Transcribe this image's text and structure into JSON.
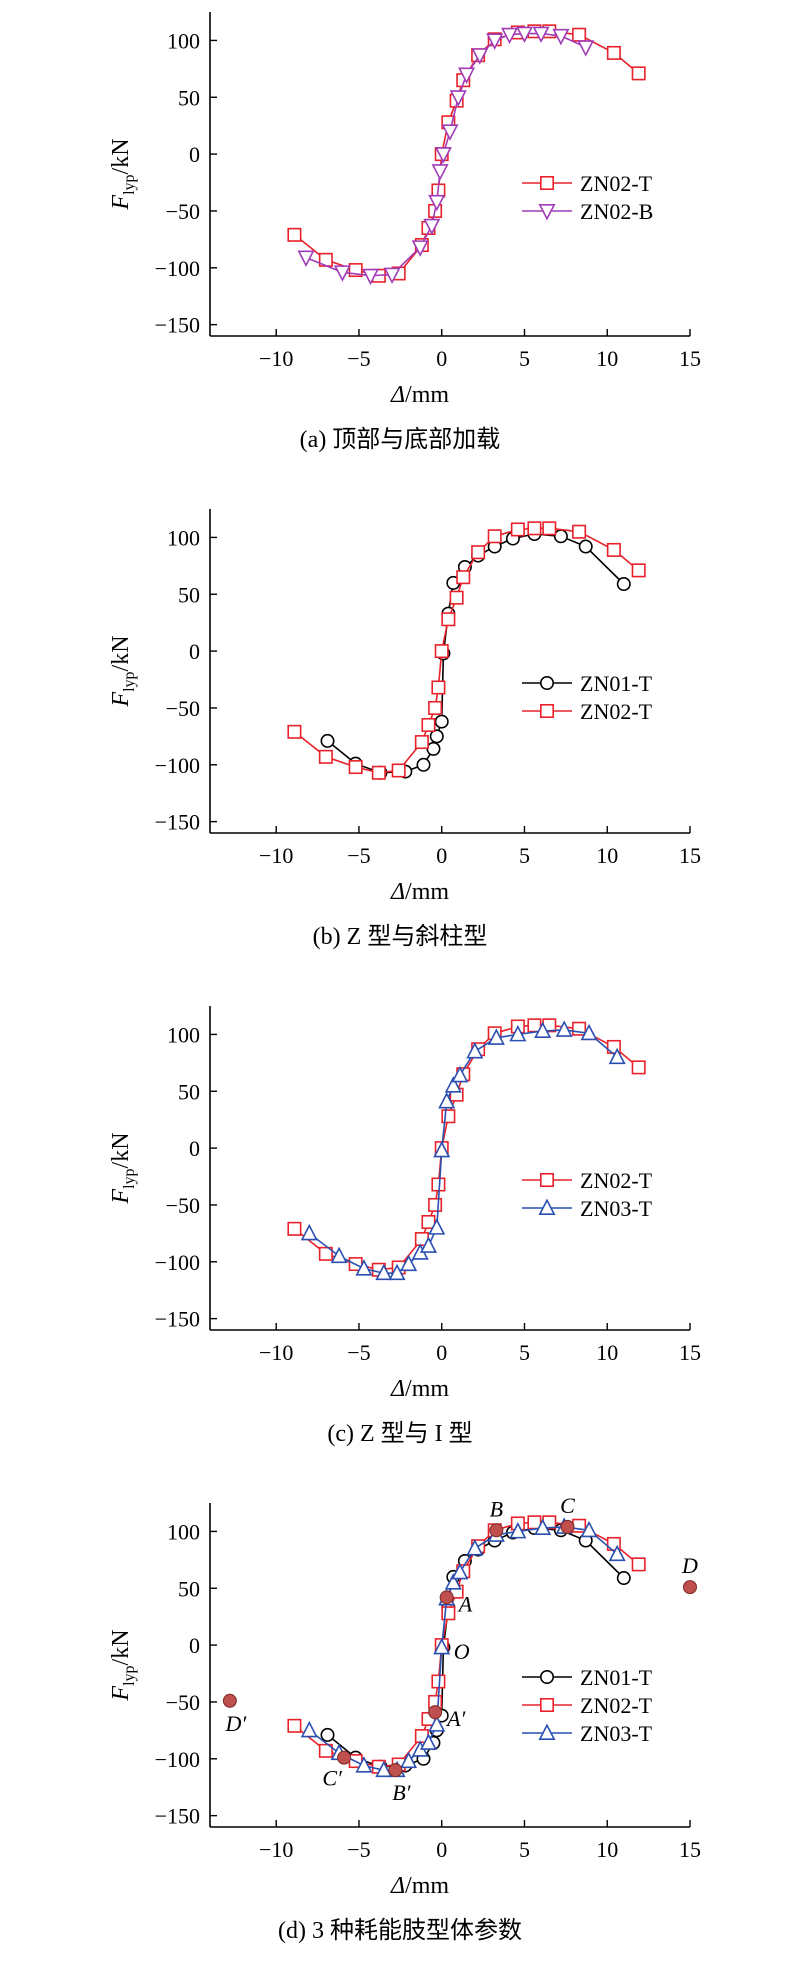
{
  "figure": {
    "colors": {
      "ZN01-T": "#000000",
      "ZN02-T": "#e8212a",
      "ZN02-B": "#a13bb8",
      "ZN03-T": "#2a4fb0",
      "point": "#c0504d"
    },
    "ylabel_main": "F",
    "ylabel_sub": "lyp",
    "ylabel_unit": "/kN",
    "xlabel_italic": "Δ",
    "xlabel_unit": "/mm"
  },
  "chart_data": [
    {
      "type": "line",
      "caption": "(a) 顶部与底部加载",
      "xlim": [
        -14,
        15
      ],
      "ylim": [
        -160,
        125
      ],
      "xticks": [
        "−10",
        "−5",
        "0",
        "5",
        "10",
        "15"
      ],
      "yticks": [
        "−150",
        "−100",
        "−50",
        "0",
        "50",
        "100"
      ],
      "legend": "lower-right",
      "series": [
        {
          "name": "ZN02-T",
          "marker": "square",
          "x": [
            -8.9,
            -7.0,
            -5.2,
            -3.8,
            -2.6,
            -1.2,
            -0.8,
            -0.4,
            -0.2,
            0.0,
            0.4,
            0.9,
            1.3,
            2.2,
            3.2,
            4.6,
            5.6,
            6.5,
            8.3,
            10.4,
            11.9
          ],
          "y": [
            -71,
            -93,
            -102,
            -107,
            -105,
            -80,
            -65,
            -50,
            -32,
            0,
            28,
            47,
            65,
            87,
            101,
            107,
            108,
            108,
            105,
            89,
            71
          ]
        },
        {
          "name": "ZN02-B",
          "marker": "triangle-down",
          "x": [
            -8.2,
            -6.0,
            -4.3,
            -3.0,
            -1.3,
            -0.6,
            -0.3,
            -0.1,
            0.1,
            0.5,
            1.0,
            1.5,
            2.3,
            3.2,
            4.1,
            5.0,
            6.0,
            7.2,
            8.7
          ],
          "y": [
            -91,
            -104,
            -107,
            -106,
            -82,
            -63,
            -42,
            -15,
            0,
            20,
            50,
            70,
            87,
            100,
            105,
            106,
            106,
            104,
            94
          ]
        }
      ]
    },
    {
      "type": "line",
      "caption": "(b) Z 型与斜柱型",
      "xlim": [
        -14,
        15
      ],
      "ylim": [
        -160,
        125
      ],
      "xticks": [
        "−10",
        "−5",
        "0",
        "5",
        "10",
        "15"
      ],
      "yticks": [
        "−150",
        "−100",
        "−50",
        "0",
        "50",
        "100"
      ],
      "legend": "lower-right",
      "series": [
        {
          "name": "ZN01-T",
          "marker": "circle",
          "x": [
            -6.9,
            -5.2,
            -3.7,
            -2.2,
            -1.1,
            -0.5,
            -0.3,
            0.0,
            0.1,
            0.4,
            0.7,
            1.4,
            2.2,
            3.2,
            4.3,
            5.6,
            7.2,
            8.7,
            11.0
          ],
          "y": [
            -79,
            -99,
            -107,
            -106,
            -100,
            -86,
            -75,
            -62,
            -2,
            33,
            60,
            74,
            84,
            92,
            99,
            103,
            101,
            92,
            59
          ]
        },
        {
          "name": "ZN02-T",
          "marker": "square",
          "x": [
            -8.9,
            -7.0,
            -5.2,
            -3.8,
            -2.6,
            -1.2,
            -0.8,
            -0.4,
            -0.2,
            0.0,
            0.4,
            0.9,
            1.3,
            2.2,
            3.2,
            4.6,
            5.6,
            6.5,
            8.3,
            10.4,
            11.9
          ],
          "y": [
            -71,
            -93,
            -102,
            -107,
            -105,
            -80,
            -65,
            -50,
            -32,
            0,
            28,
            47,
            65,
            87,
            101,
            107,
            108,
            108,
            105,
            89,
            71
          ]
        }
      ]
    },
    {
      "type": "line",
      "caption": "(c) Z 型与 I 型",
      "xlim": [
        -14,
        15
      ],
      "ylim": [
        -160,
        125
      ],
      "xticks": [
        "−10",
        "−5",
        "0",
        "5",
        "10",
        "15"
      ],
      "yticks": [
        "−150",
        "−100",
        "−50",
        "0",
        "50",
        "100"
      ],
      "legend": "lower-right",
      "series": [
        {
          "name": "ZN02-T",
          "marker": "square",
          "x": [
            -8.9,
            -7.0,
            -5.2,
            -3.8,
            -2.6,
            -1.2,
            -0.8,
            -0.4,
            -0.2,
            0.0,
            0.4,
            0.9,
            1.3,
            2.2,
            3.2,
            4.6,
            5.6,
            6.5,
            8.3,
            10.4,
            11.9
          ],
          "y": [
            -71,
            -93,
            -102,
            -107,
            -105,
            -80,
            -65,
            -50,
            -32,
            0,
            28,
            47,
            65,
            87,
            101,
            107,
            108,
            108,
            105,
            89,
            71
          ]
        },
        {
          "name": "ZN03-T",
          "marker": "triangle-up",
          "x": [
            -8.0,
            -6.2,
            -4.7,
            -3.5,
            -2.7,
            -2.0,
            -1.3,
            -0.8,
            -0.3,
            0.0,
            0.3,
            0.7,
            1.1,
            2.0,
            3.3,
            4.6,
            6.1,
            7.4,
            8.9,
            10.6
          ],
          "y": [
            -75,
            -95,
            -106,
            -110,
            -110,
            -102,
            -92,
            -86,
            -70,
            -2,
            41,
            55,
            64,
            85,
            97,
            100,
            103,
            104,
            101,
            80
          ]
        }
      ]
    },
    {
      "type": "line",
      "caption": "(d) 3 种耗能肢型体参数",
      "xlim": [
        -14,
        15
      ],
      "ylim": [
        -160,
        125
      ],
      "xticks": [
        "−10",
        "−5",
        "0",
        "5",
        "10",
        "15"
      ],
      "yticks": [
        "−150",
        "−100",
        "−50",
        "0",
        "50",
        "100"
      ],
      "legend": "lower-right",
      "series": [
        {
          "name": "ZN01-T",
          "marker": "circle",
          "x": [
            -6.9,
            -5.2,
            -3.7,
            -2.2,
            -1.1,
            -0.5,
            -0.3,
            0.0,
            0.1,
            0.4,
            0.7,
            1.4,
            2.2,
            3.2,
            4.3,
            5.6,
            7.2,
            8.7,
            11.0
          ],
          "y": [
            -79,
            -99,
            -107,
            -106,
            -100,
            -86,
            -75,
            -62,
            -2,
            33,
            60,
            74,
            84,
            92,
            99,
            103,
            101,
            92,
            59
          ]
        },
        {
          "name": "ZN02-T",
          "marker": "square",
          "x": [
            -8.9,
            -7.0,
            -5.2,
            -3.8,
            -2.6,
            -1.2,
            -0.8,
            -0.4,
            -0.2,
            0.0,
            0.4,
            0.9,
            1.3,
            2.2,
            3.2,
            4.6,
            5.6,
            6.5,
            8.3,
            10.4,
            11.9
          ],
          "y": [
            -71,
            -93,
            -102,
            -107,
            -105,
            -80,
            -65,
            -50,
            -32,
            0,
            28,
            47,
            65,
            87,
            101,
            107,
            108,
            108,
            105,
            89,
            71
          ]
        },
        {
          "name": "ZN03-T",
          "marker": "triangle-up",
          "x": [
            -8.0,
            -6.2,
            -4.7,
            -3.5,
            -2.7,
            -2.0,
            -1.3,
            -0.8,
            -0.3,
            0.0,
            0.3,
            0.7,
            1.1,
            2.0,
            3.3,
            4.6,
            6.1,
            7.4,
            8.9,
            10.6
          ],
          "y": [
            -75,
            -95,
            -106,
            -110,
            -110,
            -102,
            -92,
            -86,
            -70,
            -2,
            41,
            55,
            64,
            85,
            97,
            100,
            103,
            104,
            101,
            80
          ]
        }
      ],
      "points": [
        {
          "label": "O",
          "x": 0.0,
          "y": 0,
          "filled": false,
          "label_pos": "right"
        },
        {
          "label": "A",
          "x": 0.3,
          "y": 42,
          "filled": true,
          "label_pos": "right"
        },
        {
          "label": "B",
          "x": 3.3,
          "y": 101,
          "filled": true,
          "label_pos": "top"
        },
        {
          "label": "C",
          "x": 7.6,
          "y": 104,
          "filled": true,
          "label_pos": "top"
        },
        {
          "label": "D",
          "x": 15.0,
          "y": 51,
          "filled": true,
          "label_pos": "top"
        },
        {
          "label": "A′",
          "x": -0.4,
          "y": -59,
          "filled": true,
          "label_pos": "right"
        },
        {
          "label": "B′",
          "x": -2.8,
          "y": -110,
          "filled": true,
          "label_pos": "bottom"
        },
        {
          "label": "C′",
          "x": -5.9,
          "y": -99,
          "filled": true,
          "label_pos": "bottom-left"
        },
        {
          "label": "D′",
          "x": -12.8,
          "y": -49,
          "filled": true,
          "label_pos": "bottom"
        }
      ]
    }
  ]
}
